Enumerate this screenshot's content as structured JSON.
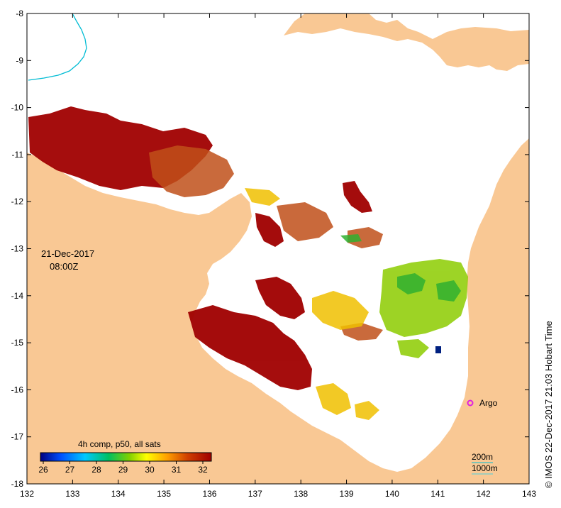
{
  "map": {
    "date_label": "21-Dec-2017",
    "time_label": "08:00Z",
    "composite_label": "4h comp, p50, all sats",
    "side_credit": "© IMOS 22-Dec-2017 21:03 Hobart Time",
    "argo_label": "Argo",
    "contour_labels": [
      "200m",
      "1000m"
    ],
    "x_ticks": [
      "132",
      "133",
      "134",
      "135",
      "136",
      "137",
      "138",
      "139",
      "140",
      "141",
      "142",
      "143"
    ],
    "y_ticks": [
      "-8",
      "-9",
      "-10",
      "-11",
      "-12",
      "-13",
      "-14",
      "-15",
      "-16",
      "-17",
      "-18"
    ],
    "colorbar_ticks": [
      "26",
      "27",
      "28",
      "29",
      "30",
      "31",
      "32"
    ],
    "colors": {
      "land": "#f9c894",
      "no_data": "#ffffff",
      "contour_200m": "#00bcd4",
      "contour_1000m": "#4dd0e1",
      "argo_marker": "#e020e0",
      "sst_hot": "#9e0000"
    }
  }
}
